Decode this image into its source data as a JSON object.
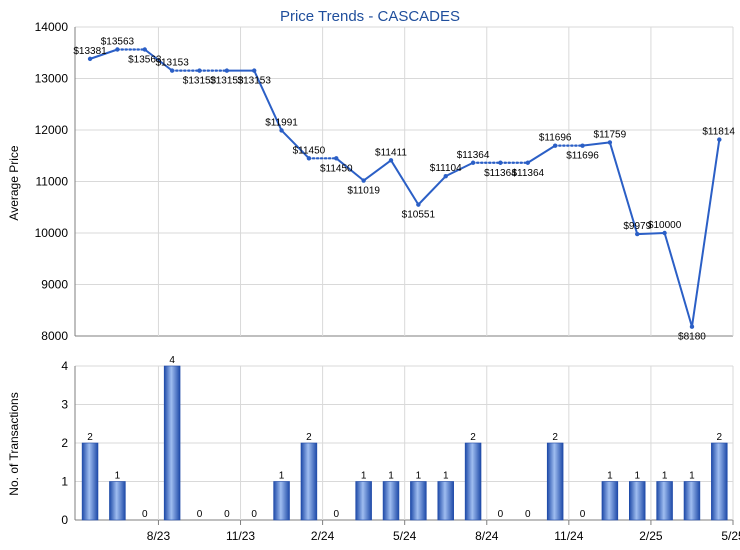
{
  "chart_data": [
    {
      "type": "line",
      "title": "Price Trends - CASCADES",
      "ylabel": "Average Price",
      "ylim": [
        8000,
        14000
      ],
      "yticks": [
        8000,
        9000,
        10000,
        11000,
        12000,
        13000,
        14000
      ],
      "grid": true,
      "color": "#2b5fc6",
      "x": [
        1,
        2,
        3,
        4,
        5,
        6,
        7,
        8,
        9,
        10,
        11,
        12,
        13,
        14,
        15,
        16,
        17,
        18,
        19,
        20,
        21,
        22,
        23,
        24
      ],
      "values": [
        13381,
        13563,
        13563,
        13153,
        13153,
        13153,
        13153,
        11991,
        11450,
        11450,
        11019,
        11411,
        10551,
        11104,
        11364,
        11364,
        11364,
        11696,
        11696,
        11759,
        9979,
        10000,
        8180,
        11814
      ],
      "point_labels": [
        "$13381",
        "$13563",
        "$13563",
        "$13153",
        "$13153",
        "$13153",
        "$13153",
        "$11991",
        "$11450",
        "$11450",
        "$11019",
        "$11411",
        "$10551",
        "$11104",
        "$11364",
        "$11364",
        "$11364",
        "$11696",
        "$11696",
        "$11759",
        "$9979",
        "$10000",
        "$8180",
        "$11814"
      ],
      "segment_style": [
        "solid",
        "dotted",
        "solid",
        "dotted",
        "dotted",
        "solid",
        "solid",
        "solid",
        "dotted",
        "solid",
        "solid",
        "solid",
        "solid",
        "solid",
        "dotted",
        "dotted",
        "solid",
        "dotted",
        "solid",
        "solid",
        "solid",
        "solid",
        "solid"
      ]
    },
    {
      "type": "bar",
      "ylabel": "No. of Transactions",
      "ylim": [
        0,
        4
      ],
      "yticks": [
        0,
        1,
        2,
        3,
        4
      ],
      "grid": true,
      "color": "#3a66c4",
      "values": [
        2,
        1,
        0,
        4,
        0,
        0,
        0,
        1,
        2,
        0,
        1,
        1,
        1,
        1,
        2,
        0,
        0,
        2,
        0,
        1,
        1,
        1,
        1,
        2
      ],
      "x_ticks": [
        {
          "index": 3,
          "label": "8/23"
        },
        {
          "index": 6,
          "label": "11/23"
        },
        {
          "index": 9,
          "label": "2/24"
        },
        {
          "index": 12,
          "label": "5/24"
        },
        {
          "index": 15,
          "label": "8/24"
        },
        {
          "index": 18,
          "label": "11/24"
        },
        {
          "index": 21,
          "label": "2/25"
        },
        {
          "index": 24,
          "label": "5/25"
        }
      ]
    }
  ]
}
